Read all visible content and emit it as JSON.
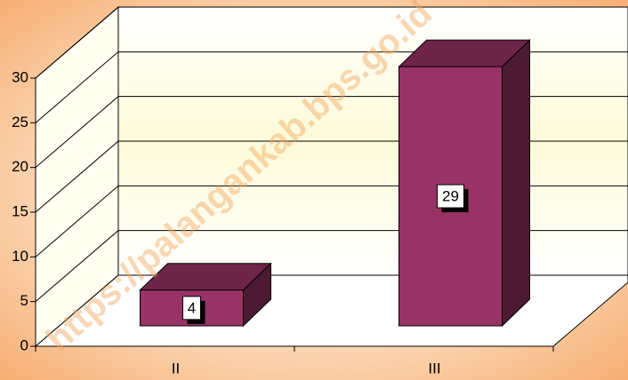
{
  "chart_data": {
    "type": "bar3d",
    "watermark": "https://palangankab.bps.go.id",
    "categories": [
      "II",
      "III"
    ],
    "values": [
      4,
      29
    ],
    "color": "#993366",
    "ylim": [
      0,
      30
    ],
    "yticks": [
      0,
      5,
      10,
      15,
      20,
      25,
      30
    ],
    "grid": true
  }
}
